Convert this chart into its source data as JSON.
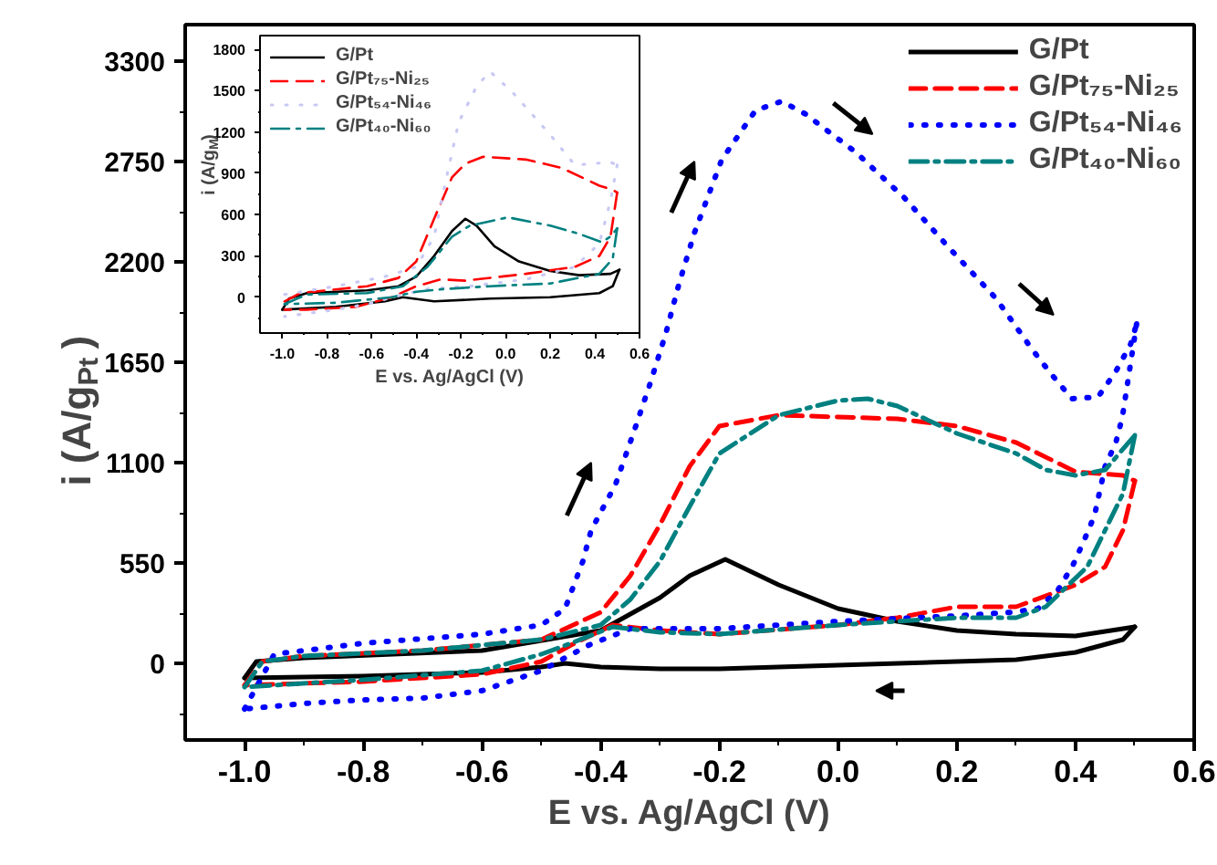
{
  "chart_data": [
    {
      "type": "line",
      "xlabel": "E vs. Ag/AgCl (V)",
      "ylabel": "i (A/g$_{Pt}$)",
      "xlim": [
        -1.1,
        0.6
      ],
      "ylim": [
        -420,
        3500
      ],
      "xticks": [
        {
          "value": -1.0,
          "label": "-1.0"
        },
        {
          "value": -0.8,
          "label": "-0.8"
        },
        {
          "value": -0.6,
          "label": "-0.6"
        },
        {
          "value": -0.4,
          "label": "-0.4"
        },
        {
          "value": -0.2,
          "label": "-0.2"
        },
        {
          "value": 0.0,
          "label": "0.0"
        },
        {
          "value": 0.2,
          "label": "0.2"
        },
        {
          "value": 0.4,
          "label": "0.4"
        },
        {
          "value": 0.6,
          "label": "0.6"
        }
      ],
      "yticks": [
        0,
        550,
        1100,
        1650,
        2200,
        2750,
        3300
      ],
      "legend": "top right",
      "series": [
        {
          "name": "G/Pt",
          "color": "#000000",
          "line_style": "solid",
          "x": [
            -1.0,
            -0.98,
            -0.9,
            -0.6,
            -0.4,
            -0.3,
            -0.25,
            -0.19,
            -0.1,
            0.0,
            0.1,
            0.2,
            0.3,
            0.4,
            0.5
          ],
          "values": [
            -80,
            10,
            30,
            70,
            180,
            360,
            480,
            570,
            430,
            300,
            230,
            180,
            160,
            150,
            200
          ]
        },
        {
          "color": "#000000",
          "line_style": "solid",
          "x": [
            0.5,
            0.48,
            0.4,
            0.3,
            0.2,
            0.0,
            -0.2,
            -0.3,
            -0.4,
            -0.46,
            -0.5,
            -0.6,
            -0.8,
            -1.0
          ],
          "values": [
            200,
            130,
            60,
            20,
            10,
            -10,
            -30,
            -30,
            -20,
            0,
            -20,
            -50,
            -70,
            -80
          ]
        },
        {
          "name": "G/Pt₇₅-Ni₂₅",
          "color": "#ff0000",
          "line_style": "dashed",
          "x": [
            -1.0,
            -0.97,
            -0.9,
            -0.7,
            -0.5,
            -0.4,
            -0.35,
            -0.3,
            -0.25,
            -0.2,
            -0.1,
            0.0,
            0.1,
            0.2,
            0.3,
            0.4,
            0.48,
            0.5
          ],
          "values": [
            -120,
            10,
            40,
            70,
            130,
            280,
            480,
            760,
            1080,
            1300,
            1360,
            1350,
            1340,
            1300,
            1210,
            1050,
            1030,
            1000
          ]
        },
        {
          "color": "#ff0000",
          "line_style": "dashed",
          "x": [
            0.5,
            0.48,
            0.45,
            0.4,
            0.3,
            0.2,
            0.1,
            0.0,
            -0.2,
            -0.3,
            -0.38,
            -0.45,
            -0.5,
            -0.6,
            -0.8,
            -1.0
          ],
          "values": [
            1000,
            730,
            530,
            430,
            310,
            310,
            250,
            210,
            160,
            180,
            210,
            100,
            10,
            -60,
            -100,
            -120
          ]
        },
        {
          "name": "G/Pt₅₄-Ni₄₆",
          "color": "#0000ff",
          "line_style": "dotted",
          "x": [
            -1.0,
            -0.95,
            -0.8,
            -0.6,
            -0.5,
            -0.46,
            -0.43,
            -0.416,
            -0.375,
            -0.345,
            -0.317,
            -0.29,
            -0.268,
            -0.242,
            -0.196,
            -0.139,
            -0.095,
            -0.055,
            0.03,
            0.112,
            0.189,
            0.266,
            0.327,
            0.358,
            0.394,
            0.438,
            0.468,
            0.493,
            0.503
          ],
          "values": [
            -250,
            50,
            110,
            160,
            210,
            300,
            560,
            730,
            980,
            1260,
            1530,
            1810,
            2080,
            2360,
            2760,
            3030,
            3080,
            3010,
            2800,
            2550,
            2270,
            2000,
            1720,
            1590,
            1450,
            1460,
            1600,
            1750,
            1860
          ]
        },
        {
          "color": "#0000ff",
          "line_style": "dotted",
          "x": [
            0.503,
            0.479,
            0.468,
            0.45,
            0.432,
            0.414,
            0.396,
            0.37,
            0.337,
            0.293,
            0.2,
            0.0,
            -0.2,
            -0.35,
            -0.42,
            -0.5,
            -0.6,
            -0.7,
            -0.8,
            -0.9,
            -1.0
          ],
          "values": [
            1860,
            1350,
            1210,
            1080,
            810,
            670,
            540,
            400,
            300,
            280,
            260,
            230,
            190,
            190,
            100,
            -40,
            -150,
            -190,
            -200,
            -220,
            -250
          ]
        },
        {
          "name": "G/Pt₄₀-Ni₆₀",
          "color": "#008080",
          "line_style": "dashdot",
          "x": [
            -1.0,
            -0.97,
            -0.9,
            -0.7,
            -0.5,
            -0.4,
            -0.35,
            -0.3,
            -0.25,
            -0.2,
            -0.1,
            0.0,
            0.05,
            0.1,
            0.2,
            0.3,
            0.35,
            0.4,
            0.45,
            0.5
          ],
          "values": [
            -130,
            10,
            40,
            70,
            130,
            210,
            350,
            560,
            860,
            1150,
            1360,
            1440,
            1450,
            1410,
            1260,
            1150,
            1060,
            1030,
            1060,
            1250
          ]
        },
        {
          "color": "#008080",
          "line_style": "dashdot",
          "x": [
            0.5,
            0.48,
            0.45,
            0.42,
            0.35,
            0.3,
            0.2,
            0.0,
            -0.2,
            -0.3,
            -0.38,
            -0.45,
            -0.5,
            -0.6,
            -0.8,
            -1.0
          ],
          "values": [
            1250,
            930,
            730,
            530,
            310,
            250,
            250,
            210,
            160,
            170,
            200,
            110,
            50,
            -40,
            -90,
            -130
          ]
        }
      ]
    },
    {
      "type": "line",
      "xlabel": "E vs. Ag/AgCl (V)",
      "ylabel": "i (A/g$_{M}$)",
      "xlim": [
        -1.1,
        0.6
      ],
      "ylim": [
        -260,
        1900
      ],
      "xticks": [
        {
          "value": -1.0,
          "label": "-1.0"
        },
        {
          "value": -0.8,
          "label": "-0.8"
        },
        {
          "value": -0.6,
          "label": "-0.6"
        },
        {
          "value": -0.4,
          "label": "-0.4"
        },
        {
          "value": -0.2,
          "label": "-0.2"
        },
        {
          "value": 0.0,
          "label": "0.0"
        },
        {
          "value": 0.2,
          "label": "0.2"
        },
        {
          "value": 0.4,
          "label": "0.4"
        },
        {
          "value": 0.6,
          "label": "0.6"
        }
      ],
      "yticks": [
        0,
        300,
        600,
        900,
        1200,
        1500,
        1800
      ],
      "legend": "top left",
      "series": [
        {
          "name": "G/Pt",
          "color": "#000000",
          "line_style": "solid",
          "x": [
            -1.0,
            -0.97,
            -0.89,
            -0.62,
            -0.48,
            -0.4,
            -0.32,
            -0.24,
            -0.18,
            -0.13,
            -0.05,
            0.06,
            0.2,
            0.33,
            0.47,
            0.51
          ],
          "values": [
            -90,
            -10,
            30,
            50,
            80,
            150,
            300,
            480,
            570,
            520,
            370,
            260,
            190,
            160,
            170,
            200
          ]
        },
        {
          "color": "#000000",
          "line_style": "solid",
          "x": [
            0.51,
            0.48,
            0.42,
            0.2,
            -0.07,
            -0.32,
            -0.46,
            -0.54,
            -0.76,
            -1.0
          ],
          "values": [
            200,
            80,
            30,
            0,
            -10,
            -30,
            0,
            -30,
            -70,
            -90
          ]
        },
        {
          "name": "G/Pt₇₅-Ni₂₅",
          "color": "#ff0000",
          "line_style": "dashed",
          "x": [
            -0.99,
            -0.92,
            -0.62,
            -0.48,
            -0.4,
            -0.32,
            -0.24,
            -0.18,
            -0.1,
            0.09,
            0.25,
            0.42,
            0.48,
            0.5
          ],
          "values": [
            -30,
            30,
            80,
            140,
            260,
            570,
            870,
            970,
            1020,
            1000,
            940,
            810,
            780,
            760
          ]
        },
        {
          "color": "#ff0000",
          "line_style": "dashed",
          "x": [
            0.5,
            0.47,
            0.42,
            0.31,
            0.09,
            -0.18,
            -0.29,
            -0.4,
            -0.51,
            -0.67,
            -0.89,
            -0.99
          ],
          "values": [
            760,
            440,
            300,
            220,
            170,
            120,
            130,
            80,
            0,
            -70,
            -90,
            -90
          ]
        },
        {
          "name": "G/Pt₅₄-Ni₄₆",
          "color": "#c8c8f4",
          "line_style": "dotted",
          "x": [
            -0.99,
            -0.76,
            -0.54,
            -0.4,
            -0.32,
            -0.27,
            -0.21,
            -0.13,
            -0.07,
            0.03,
            0.2,
            0.31,
            0.47,
            0.5
          ],
          "values": [
            20,
            80,
            150,
            220,
            440,
            830,
            1270,
            1530,
            1640,
            1490,
            1180,
            960,
            980,
            960
          ]
        },
        {
          "color": "#c8c8f4",
          "line_style": "dotted",
          "x": [
            0.5,
            0.47,
            0.42,
            0.31,
            0.09,
            -0.16,
            -0.35,
            -0.46,
            -0.62,
            -0.76,
            -0.99
          ],
          "values": [
            960,
            700,
            390,
            220,
            130,
            80,
            60,
            20,
            -50,
            -90,
            -140
          ]
        },
        {
          "name": "G/Pt₄₀-Ni₆₀",
          "color": "#008080",
          "line_style": "dashdot",
          "x": [
            -0.99,
            -0.89,
            -0.62,
            -0.46,
            -0.35,
            -0.24,
            -0.16,
            0.01,
            0.2,
            0.33,
            0.43,
            0.47,
            0.5
          ],
          "values": [
            -50,
            20,
            30,
            80,
            220,
            440,
            520,
            580,
            520,
            460,
            400,
            440,
            500
          ]
        },
        {
          "color": "#008080",
          "line_style": "dashdot",
          "x": [
            0.5,
            0.48,
            0.42,
            0.2,
            -0.07,
            -0.27,
            -0.4,
            -0.51,
            -0.76,
            -0.99
          ],
          "values": [
            500,
            280,
            170,
            100,
            80,
            60,
            40,
            0,
            -40,
            -50
          ]
        }
      ]
    }
  ]
}
